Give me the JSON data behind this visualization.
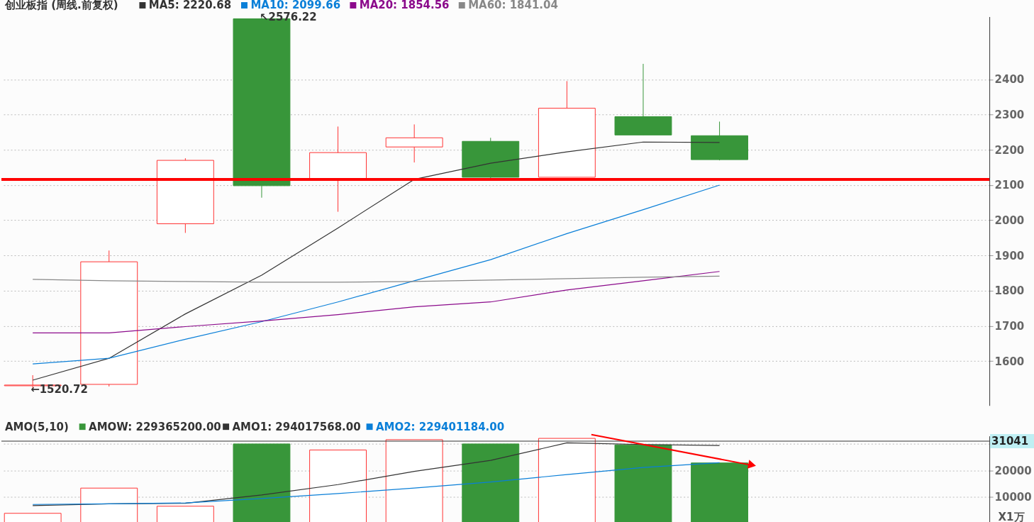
{
  "chart_data": [
    {
      "type": "candlestick",
      "title": "创业板指 (周线.前复权)",
      "categories": [
        null,
        null,
        null,
        null,
        null,
        null,
        null,
        null,
        null,
        null
      ],
      "ohlc": [
        [
          1530,
          1560,
          1520.72,
          1532
        ],
        [
          1534,
          1914,
          1528,
          1882
        ],
        [
          1990,
          2176,
          1964,
          2170
        ],
        [
          2572,
          2576.22,
          2064,
          2098
        ],
        [
          2116,
          2266,
          2024,
          2192
        ],
        [
          2208,
          2272,
          2164,
          2234
        ],
        [
          2224,
          2234,
          2116,
          2122
        ],
        [
          2122,
          2395,
          2122,
          2318
        ],
        [
          2294,
          2444,
          2242,
          2242
        ],
        [
          2240,
          2280,
          2170,
          2172
        ]
      ],
      "colors": [
        "#ff3232",
        "#ff3232",
        "#ff3232",
        "#38963a",
        "#ff3232",
        "#ff3232",
        "#38963a",
        "#ff3232",
        "#38963a",
        "#38963a"
      ],
      "series": [
        {
          "name": "MA5: 2220.68",
          "type": "line",
          "color": "#333333",
          "values": [
            1546,
            1608,
            1734,
            1844,
            1978,
            2116,
            2162,
            2194,
            2222,
            2220.68
          ]
        },
        {
          "name": "MA10: 2099.66",
          "type": "line",
          "color": "#0a7fd8",
          "values": [
            1592,
            1608,
            1662,
            1712,
            1768,
            1828,
            1888,
            1962,
            2030,
            2099.66
          ]
        },
        {
          "name": "MA20: 1854.56",
          "type": "line",
          "color": "#8b0a8b",
          "values": [
            1680,
            1680,
            1698,
            1714,
            1732,
            1754,
            1768,
            1802,
            1828,
            1854.56
          ]
        },
        {
          "name": "MA60: 1841.04",
          "type": "line",
          "color": "#888888",
          "values": [
            1832,
            1828,
            1826,
            1824,
            1824,
            1826,
            1830,
            1834,
            1838,
            1841.04
          ]
        }
      ],
      "ylim": [
        1474,
        2578
      ],
      "yticks": [
        1600,
        1700,
        1800,
        1900,
        2000,
        2100,
        2200,
        2300,
        2400
      ],
      "grid": "y",
      "legend": "top left",
      "annotations": [
        {
          "text": "←1520.72",
          "y": 1520.72
        },
        {
          "text": "↖2576.22",
          "y": 2576.22
        }
      ],
      "ref_lines": [
        {
          "axis": "y",
          "value": 2116,
          "color": "#ff0000"
        }
      ]
    },
    {
      "type": "bar",
      "title": "AMO(5,10)",
      "categories": [
        null,
        null,
        null,
        null,
        null,
        null,
        null,
        null,
        null,
        null
      ],
      "series": [
        {
          "name": "AMOW: 229365200.00",
          "type": "bar",
          "colors": [
            "#ff3232",
            "#ff3232",
            "#ff3232",
            "#38963a",
            "#ff3232",
            "#ff3232",
            "#38963a",
            "#ff3232",
            "#38963a",
            "#38963a"
          ],
          "values": [
            3930,
            13400,
            6600,
            30000,
            27720,
            31600,
            30000,
            32090,
            29660,
            22860
          ]
        },
        {
          "name": "AMO1: 294017568.00",
          "type": "line",
          "color": "#333333",
          "values": [
            6840,
            7480,
            7670,
            10830,
            14730,
            19700,
            23830,
            30390,
            29780,
            29400
          ]
        },
        {
          "name": "AMO2: 229401184.00",
          "type": "line",
          "color": "#0a7fd8",
          "values": [
            7260,
            7480,
            7820,
            9510,
            11360,
            13400,
            15700,
            18490,
            21160,
            22940
          ]
        }
      ],
      "ylim": [
        0,
        33000
      ],
      "yticks": [
        10000,
        20000,
        {
          "value": 30000,
          "label": null
        }
      ],
      "ylabel": "X1万",
      "grid": "y",
      "legend": "top left",
      "ref_lines": [
        {
          "axis": "y",
          "value": 31041,
          "label": "31041",
          "color": "#333333"
        }
      ]
    }
  ]
}
